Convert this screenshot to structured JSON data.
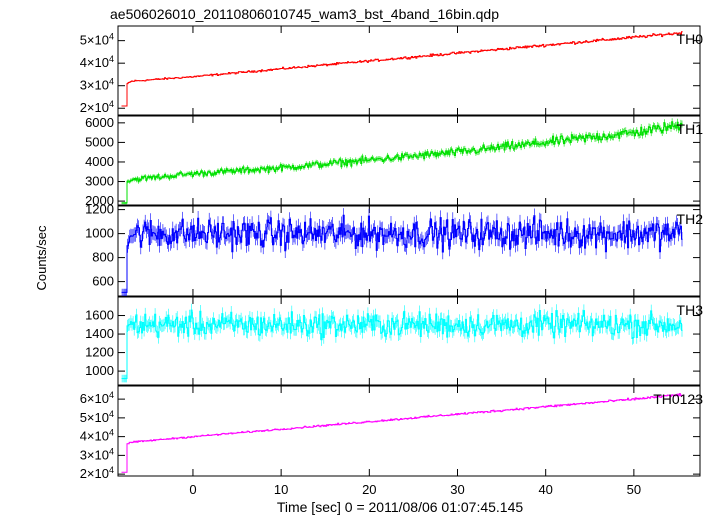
{
  "chart_data": {
    "type": "line",
    "title": "ae506026010_20110806010745_wam3_bst_4band_16bin.qdp",
    "xlabel": "Time [sec] 0 = 2011/08/06 01:07:45.145",
    "ylabel": "Counts/sec",
    "xlim": [
      -8.5,
      57.5
    ],
    "xticks": [
      0,
      10,
      20,
      30,
      40,
      50
    ],
    "xtick_labels": [
      "0",
      "10",
      "20",
      "30",
      "40",
      "50"
    ],
    "grid": false,
    "panels": [
      {
        "name": "TH0",
        "color": "#ff0000",
        "ylim": [
          17000,
          56500
        ],
        "yticks": [
          20000,
          30000,
          40000,
          50000
        ],
        "ytick_labels": [
          [
            "2",
            "4"
          ],
          [
            "3",
            "4"
          ],
          [
            "4",
            "4"
          ],
          [
            "5",
            "4"
          ]
        ],
        "x": [
          -8.1,
          -7.6,
          -7.5,
          -7,
          0,
          10,
          20,
          30,
          40,
          50,
          55.5
        ],
        "y": [
          21000,
          21000,
          31000,
          32000,
          34000,
          37500,
          41000,
          44500,
          48000,
          51500,
          53500
        ]
      },
      {
        "name": "TH1",
        "color": "#00e000",
        "ylim": [
          1800,
          6350
        ],
        "yticks": [
          2000,
          3000,
          4000,
          5000,
          6000
        ],
        "ytick_labels": [
          "2000",
          "3000",
          "4000",
          "5000",
          "6000"
        ],
        "x": [
          -8.1,
          -7.6,
          -7.5,
          -7,
          0,
          10,
          20,
          30,
          40,
          50,
          55.5
        ],
        "y": [
          1900,
          1900,
          3000,
          3100,
          3400,
          3700,
          4100,
          4500,
          5000,
          5500,
          5900
        ]
      },
      {
        "name": "TH2",
        "color": "#0000ff",
        "ylim": [
          480,
          1230
        ],
        "yticks": [
          600,
          800,
          1000,
          1200
        ],
        "ytick_labels": [
          "600",
          "800",
          "1000",
          "1200"
        ],
        "x": [
          -8.1,
          -7.6,
          -7.5,
          -7,
          0,
          10,
          20,
          30,
          40,
          50,
          55.5
        ],
        "y": [
          510,
          510,
          960,
          1000,
          1000,
          1000,
          1000,
          1000,
          1000,
          1000,
          1000
        ]
      },
      {
        "name": "TH3",
        "color": "#00ffff",
        "ylim": [
          850,
          1800
        ],
        "yticks": [
          1000,
          1200,
          1400,
          1600
        ],
        "ytick_labels": [
          "1000",
          "1200",
          "1400",
          "1600"
        ],
        "x": [
          -8.1,
          -7.6,
          -7.5,
          -7,
          0,
          10,
          20,
          30,
          40,
          50,
          55.5
        ],
        "y": [
          920,
          920,
          1450,
          1500,
          1500,
          1500,
          1500,
          1500,
          1500,
          1500,
          1500
        ]
      },
      {
        "name": "TH0123",
        "color": "#ff00ff",
        "ylim": [
          19000,
          67000
        ],
        "yticks": [
          20000,
          30000,
          40000,
          50000,
          60000
        ],
        "ytick_labels": [
          [
            "2",
            "4"
          ],
          [
            "3",
            "4"
          ],
          [
            "4",
            "4"
          ],
          [
            "5",
            "4"
          ],
          [
            "6",
            "4"
          ]
        ],
        "x": [
          -8.1,
          -7.6,
          -7.5,
          -7,
          0,
          10,
          20,
          30,
          40,
          50,
          55.5
        ],
        "y": [
          21000,
          21000,
          36000,
          37000,
          40000,
          44000,
          48000,
          52000,
          56000,
          60000,
          62500
        ]
      }
    ]
  }
}
